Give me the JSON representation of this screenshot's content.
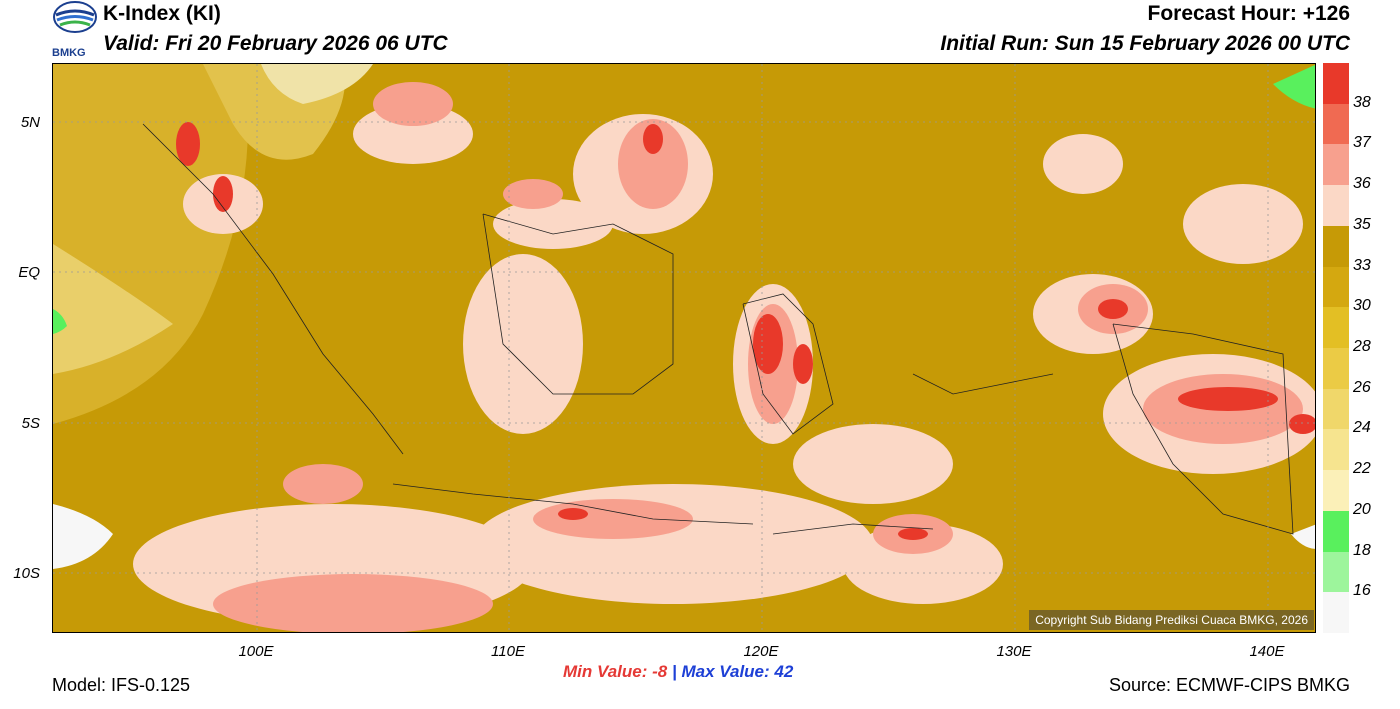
{
  "header": {
    "title": "K-Index (KI)",
    "valid": "Valid: Fri 20 February 2026 06 UTC",
    "forecast_hour": "Forecast Hour: +126",
    "initial_run": "Initial Run: Sun 15 February 2026 00 UTC",
    "logo_text": "BMKG"
  },
  "axes": {
    "y_labels": [
      "5N",
      "EQ",
      "5S",
      "10S"
    ],
    "x_labels": [
      "100E",
      "110E",
      "120E",
      "130E",
      "140E"
    ]
  },
  "stats": {
    "min_label": "Min Value:",
    "min_value": "-8",
    "separator": "|",
    "max_label": "Max Value:",
    "max_value": "42"
  },
  "footer": {
    "model": "Model: IFS-0.125",
    "source": "Source: ECMWF-CIPS BMKG",
    "copyright": "Copyright Sub Bidang Prediksi Cuaca BMKG, 2026"
  },
  "colorbar": {
    "labels": [
      "38",
      "37",
      "36",
      "35",
      "33",
      "30",
      "28",
      "26",
      "24",
      "22",
      "20",
      "18",
      "16"
    ],
    "colors": [
      "#e8392a",
      "#f06a52",
      "#f7a08e",
      "#fbd8c6",
      "#c69a06",
      "#d4a810",
      "#e3bf24",
      "#ebcb45",
      "#f0d76a",
      "#f6e48f",
      "#fbf0b8",
      "#59f05d",
      "#9df59c",
      "#f7f7f7"
    ]
  },
  "map": {
    "background_color": "#c99d0c"
  }
}
